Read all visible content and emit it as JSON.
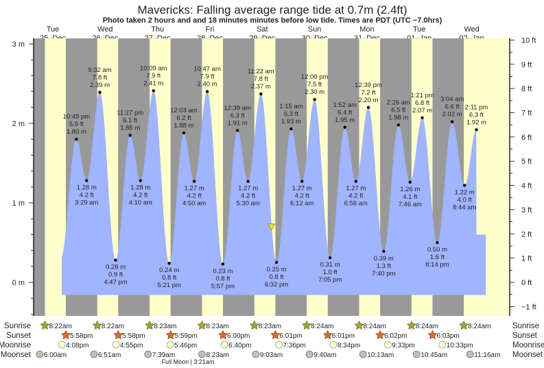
{
  "chart_data": {
    "type": "area",
    "title": "Mavericks: Falling average range tide at 0.7m (2.4ft)",
    "subtitle": "Photo taken 2 hours and and 18 minutes minutes before low tide. Times are PDT (UTC −7.0hrs)",
    "days": [
      {
        "dow": "Tue",
        "date": "25–Dec"
      },
      {
        "dow": "Wed",
        "date": "26–Dec"
      },
      {
        "dow": "Thu",
        "date": "27–Dec"
      },
      {
        "dow": "Fri",
        "date": "28–Dec"
      },
      {
        "dow": "Sat",
        "date": "29–Dec"
      },
      {
        "dow": "Sun",
        "date": "30–Dec"
      },
      {
        "dow": "Mon",
        "date": "31–Dec"
      },
      {
        "dow": "Tue",
        "date": "01–Jan"
      },
      {
        "dow": "Wed",
        "date": "02–Jan"
      }
    ],
    "y_left": {
      "unit": "m",
      "ticks": [
        "3 m",
        "2 m",
        "1 m",
        "0 m"
      ],
      "tick_values": [
        3,
        2,
        1,
        0
      ],
      "range": [
        -0.43,
        3.06
      ]
    },
    "y_right": {
      "unit": "ft",
      "ticks": [
        "10 ft",
        "9 ft",
        "8 ft",
        "7 ft",
        "6 ft",
        "5 ft",
        "4 ft",
        "3 ft",
        "2 ft",
        "1 ft",
        "0 ft",
        "−1 ft"
      ],
      "tick_values": [
        10,
        9,
        8,
        7,
        6,
        5,
        4,
        3,
        2,
        1,
        0,
        -1
      ]
    },
    "x_hours_range": [
      3.2,
      221.4
    ],
    "curve": {
      "start_hour": 16.1,
      "end_hour": 210.5,
      "floor_m": -0.16,
      "pre_low": {
        "hour": 15.6,
        "m": 0.3
      },
      "post_low": {
        "hour": 21.0,
        "m": 0.6
      }
    },
    "extremes": [
      {
        "hour": 22.82,
        "type": "high",
        "time": "10:49 pm",
        "ft": "5.9 ft",
        "m_label": "1.80 m",
        "m": 1.8
      },
      {
        "hour": 27.48,
        "type": "low",
        "time": "3:29 am",
        "ft": "4.2 ft",
        "m_label": "1.28 m",
        "m": 1.28
      },
      {
        "hour": 33.53,
        "type": "high",
        "time": "9:32 am",
        "ft": "7.8 ft",
        "m_label": "2.39 m",
        "m": 2.39
      },
      {
        "hour": 40.78,
        "type": "low",
        "time": "4:47 pm",
        "ft": "0.9 ft",
        "m_label": "0.28 m",
        "m": 0.28
      },
      {
        "hour": 47.45,
        "type": "high",
        "time": "11:27 pm",
        "ft": "6.1 ft",
        "m_label": "1.85 m",
        "m": 1.85
      },
      {
        "hour": 52.17,
        "type": "low",
        "time": "4:10 am",
        "ft": "4.2 ft",
        "m_label": "1.28 m",
        "m": 1.28
      },
      {
        "hour": 58.15,
        "type": "high",
        "time": "10:09 am",
        "ft": "7.9 ft",
        "m_label": "2.41 m",
        "m": 2.41
      },
      {
        "hour": 65.35,
        "type": "low",
        "time": "5:21 pm",
        "ft": "0.8 ft",
        "m_label": "0.24 m",
        "m": 0.24
      },
      {
        "hour": 72.05,
        "type": "high",
        "time": "12:03 am",
        "ft": "6.2 ft",
        "m_label": "1.88 m",
        "m": 1.88
      },
      {
        "hour": 76.83,
        "type": "low",
        "time": "4:50 am",
        "ft": "4.2 ft",
        "m_label": "1.27 m",
        "m": 1.27
      },
      {
        "hour": 82.78,
        "type": "high",
        "time": "10:47 am",
        "ft": "7.9 ft",
        "m_label": "2.40 m",
        "m": 2.4
      },
      {
        "hour": 89.95,
        "type": "low",
        "time": "5:57 pm",
        "ft": "0.8 ft",
        "m_label": "0.23 m",
        "m": 0.23
      },
      {
        "hour": 96.65,
        "type": "high",
        "time": "12:39 am",
        "ft": "6.3 ft",
        "m_label": "1.91 m",
        "m": 1.91
      },
      {
        "hour": 101.5,
        "type": "low",
        "time": "5:30 am",
        "ft": "4.2 ft",
        "m_label": "1.27 m",
        "m": 1.27
      },
      {
        "hour": 107.37,
        "type": "high",
        "time": "11:22 am",
        "ft": "7.8 ft",
        "m_label": "2.37 m",
        "m": 2.37
      },
      {
        "hour": 114.53,
        "type": "low",
        "time": "6:32 pm",
        "ft": "0.8 ft",
        "m_label": "0.25 m",
        "m": 0.25
      },
      {
        "hour": 121.25,
        "type": "high",
        "time": "1:15 am",
        "ft": "6.3 ft",
        "m_label": "1.93 m",
        "m": 1.93
      },
      {
        "hour": 126.2,
        "type": "low",
        "time": "6:12 am",
        "ft": "4.2 ft",
        "m_label": "1.27 m",
        "m": 1.27
      },
      {
        "hour": 132.0,
        "type": "high",
        "time": "12:00 pm",
        "ft": "7.5 ft",
        "m_label": "2.30 m",
        "m": 2.3
      },
      {
        "hour": 139.08,
        "type": "low",
        "time": "7:05 pm",
        "ft": "1.0 ft",
        "m_label": "0.31 m",
        "m": 0.31
      },
      {
        "hour": 145.87,
        "type": "high",
        "time": "1:52 am",
        "ft": "6.4 ft",
        "m_label": "1.95 m",
        "m": 1.95
      },
      {
        "hour": 150.93,
        "type": "low",
        "time": "6:56 am",
        "ft": "4.2 ft",
        "m_label": "1.27 m",
        "m": 1.27
      },
      {
        "hour": 156.65,
        "type": "high",
        "time": "12:39 pm",
        "ft": "7.2 ft",
        "m_label": "2.20 m",
        "m": 2.2
      },
      {
        "hour": 163.67,
        "type": "low",
        "time": "7:40 pm",
        "ft": "1.3 ft",
        "m_label": "0.39 m",
        "m": 0.39
      },
      {
        "hour": 170.43,
        "type": "high",
        "time": "2:26 am",
        "ft": "6.5 ft",
        "m_label": "1.98 m",
        "m": 1.98
      },
      {
        "hour": 175.77,
        "type": "low",
        "time": "7:46 am",
        "ft": "4.1 ft",
        "m_label": "1.26 m",
        "m": 1.26
      },
      {
        "hour": 181.35,
        "type": "high",
        "time": "1:21 pm",
        "ft": "6.8 ft",
        "m_label": "2.07 m",
        "m": 2.07
      },
      {
        "hour": 188.23,
        "type": "low",
        "time": "8:14 pm",
        "ft": "1.6 ft",
        "m_label": "0.50 m",
        "m": 0.5
      },
      {
        "hour": 195.07,
        "type": "high",
        "time": "3:04 am",
        "ft": "6.6 ft",
        "m_label": "2.02 m",
        "m": 2.02
      },
      {
        "hour": 200.73,
        "type": "low",
        "time": "8:44 am",
        "ft": "4.0 ft",
        "m_label": "1.22 m",
        "m": 1.22
      },
      {
        "hour": 206.18,
        "type": "high",
        "time": "2:11 pm",
        "ft": "6.3 ft",
        "m_label": "1.92 m",
        "m": 1.92
      }
    ],
    "photo_marker": {
      "hour": 112.23,
      "m": 0.7
    },
    "colors": {
      "night": "#999999",
      "day": "#ffffcc",
      "tide": "#a0b4ff",
      "day_label": "#e0201b",
      "sunrise": "#aaa238",
      "sunset": "#d8702c",
      "moonrise": "#ffffcc",
      "moonset": "#c0c0b0"
    }
  },
  "sun_moon": {
    "labels": {
      "sunrise": "Sunrise",
      "sunset": "Sunset",
      "moonrise": "Moonrise",
      "moonset": "Moonset"
    },
    "sunrise": [
      {
        "hour": 8.37,
        "text": "8:22am"
      },
      {
        "hour": 32.37,
        "text": "8:22am"
      },
      {
        "hour": 56.38,
        "text": "8:23am"
      },
      {
        "hour": 80.38,
        "text": "8:23am"
      },
      {
        "hour": 104.38,
        "text": "8:23am"
      },
      {
        "hour": 128.4,
        "text": "8:24am"
      },
      {
        "hour": 152.4,
        "text": "8:24am"
      },
      {
        "hour": 176.4,
        "text": "8:24am"
      },
      {
        "hour": 200.4,
        "text": "8:24am"
      }
    ],
    "sunset": [
      {
        "hour": 17.97,
        "text": "5:58pm"
      },
      {
        "hour": 41.97,
        "text": "5:58pm"
      },
      {
        "hour": 65.98,
        "text": "5:59pm"
      },
      {
        "hour": 90.0,
        "text": "6:00pm"
      },
      {
        "hour": 114.02,
        "text": "6:01pm"
      },
      {
        "hour": 138.02,
        "text": "6:01pm"
      },
      {
        "hour": 162.03,
        "text": "6:02pm"
      },
      {
        "hour": 186.05,
        "text": "6:03pm"
      }
    ],
    "moonrise": [
      {
        "hour": 16.13,
        "text": "4:08pm"
      },
      {
        "hour": 40.92,
        "text": "4:55pm"
      },
      {
        "hour": 65.77,
        "text": "5:46pm"
      },
      {
        "hour": 90.67,
        "text": "6:40pm"
      },
      {
        "hour": 115.6,
        "text": "7:36pm"
      },
      {
        "hour": 140.57,
        "text": "8:34pm"
      },
      {
        "hour": 165.55,
        "text": "9:33pm"
      },
      {
        "hour": 190.55,
        "text": "10:33pm"
      }
    ],
    "moonset": [
      {
        "hour": 6.0,
        "text": "6:00am"
      },
      {
        "hour": 30.85,
        "text": "6:51am"
      },
      {
        "hour": 55.65,
        "text": "7:39am"
      },
      {
        "hour": 80.38,
        "text": "8:23am"
      },
      {
        "hour": 105.05,
        "text": "9:03am"
      },
      {
        "hour": 129.67,
        "text": "9:40am"
      },
      {
        "hour": 154.22,
        "text": "10:13am"
      },
      {
        "hour": 178.75,
        "text": "10:45am"
      },
      {
        "hour": 203.27,
        "text": "11:16am"
      }
    ],
    "moon_phase": {
      "text": "Full Moon | 3:21am"
    }
  }
}
